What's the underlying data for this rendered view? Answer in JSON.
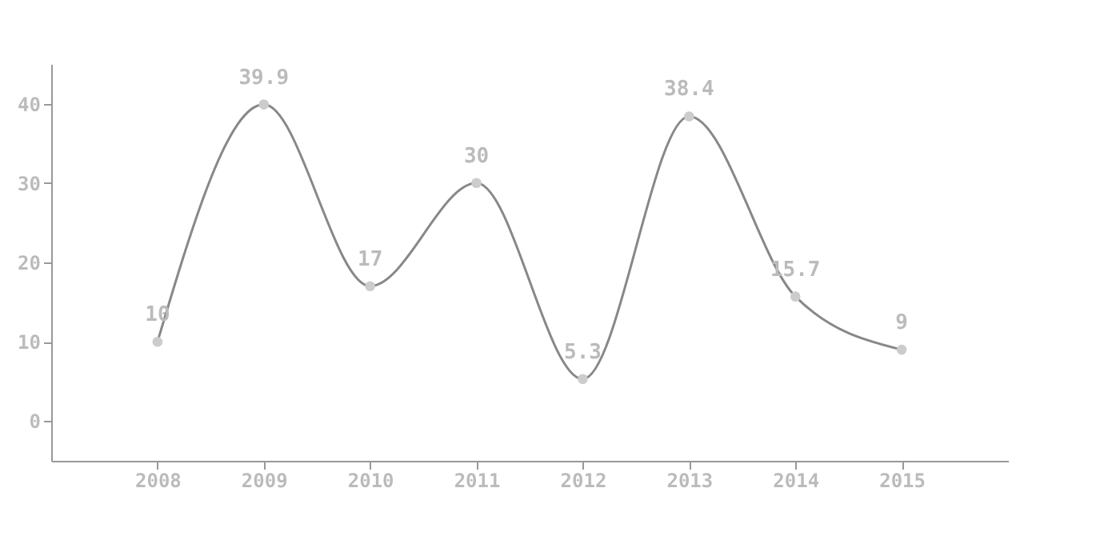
{
  "chart_data": {
    "type": "line",
    "categories": [
      "2008",
      "2009",
      "2010",
      "2011",
      "2012",
      "2013",
      "2014",
      "2015"
    ],
    "series": [
      {
        "color": "#888888",
        "values": [
          10,
          39.9,
          17,
          30,
          5.3,
          38.4,
          15.7,
          9
        ]
      }
    ],
    "ylim": [
      -5,
      45
    ],
    "yticks": [
      0,
      10,
      20,
      30,
      40
    ],
    "data_labels": true,
    "marker": "circle",
    "grid": false
  }
}
